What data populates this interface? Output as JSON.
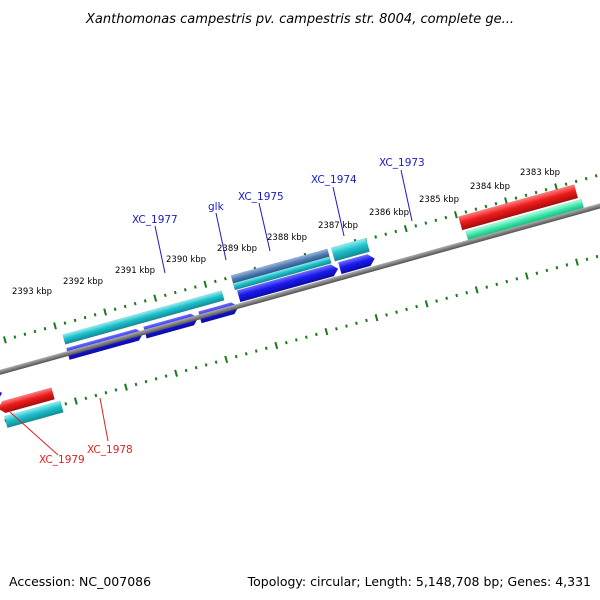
{
  "title": "Xanthomonas campestris pv. campestris str. 8004, complete ge...",
  "footer": {
    "accession": "Accession: NC_007086",
    "summary": "Topology: circular; Length: 5,148,708 bp; Genes: 4,331"
  },
  "colors": {
    "backbone": "#808080",
    "ticks": "#1a7a1a",
    "forward_label": "#1a1acc",
    "reverse_label": "#dd2222",
    "blue": "#1a1aee",
    "cyan": "#20c0cc",
    "red": "#ee1c1c",
    "spring_green": "#30e0a0",
    "gray": "#b8b8b8",
    "dark_gray": "#707070",
    "steel_blue": "#4a78b0"
  },
  "scale_labels": [
    "2393 kbp",
    "2392 kbp",
    "2391 kbp",
    "2390 kbp",
    "2389 kbp",
    "2388 kbp",
    "2387 kbp",
    "2386 kbp",
    "2385 kbp",
    "2384 kbp",
    "2383 kbp"
  ],
  "gene_labels": [
    {
      "name": "XC_1977",
      "strand": "forward"
    },
    {
      "name": "glk",
      "strand": "forward"
    },
    {
      "name": "XC_1975",
      "strand": "forward"
    },
    {
      "name": "XC_1974",
      "strand": "forward"
    },
    {
      "name": "XC_1973",
      "strand": "forward"
    },
    {
      "name": "XC_1978",
      "strand": "reverse"
    },
    {
      "name": "XC_1979",
      "strand": "reverse"
    }
  ]
}
